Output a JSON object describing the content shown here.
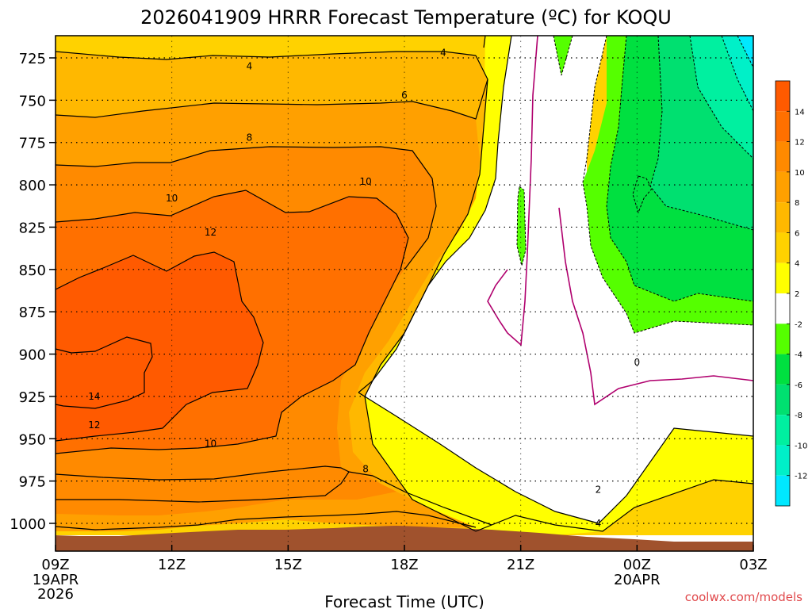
{
  "chart_data": {
    "type": "contour",
    "title": "2026041909 HRRR Forecast Temperature (ºC) for KOQU",
    "xlabel": "Forecast Time (UTC)",
    "credit": "coolwx.com/models",
    "y_ticks": [
      725,
      750,
      775,
      800,
      825,
      850,
      875,
      900,
      925,
      950,
      975,
      1000
    ],
    "x_ticks": [
      {
        "hour": 0,
        "label": "09Z",
        "sub1": "19APR",
        "sub2": "2026"
      },
      {
        "hour": 3,
        "label": "12Z",
        "sub1": "",
        "sub2": ""
      },
      {
        "hour": 6,
        "label": "15Z",
        "sub1": "",
        "sub2": ""
      },
      {
        "hour": 9,
        "label": "18Z",
        "sub1": "",
        "sub2": ""
      },
      {
        "hour": 12,
        "label": "21Z",
        "sub1": "",
        "sub2": ""
      },
      {
        "hour": 15,
        "label": "00Z",
        "sub1": "20APR",
        "sub2": ""
      },
      {
        "hour": 18,
        "label": "03Z",
        "sub1": "",
        "sub2": ""
      }
    ],
    "colorbar": {
      "labels": [
        14,
        12,
        10,
        8,
        6,
        4,
        2,
        -2,
        -4,
        -6,
        -8,
        -10,
        -12
      ],
      "bins": [
        {
          "color": "#ff5a00"
        },
        {
          "color": "#ff7000"
        },
        {
          "color": "#ff8a00"
        },
        {
          "color": "#ffa000"
        },
        {
          "color": "#ffb800"
        },
        {
          "color": "#ffd200"
        },
        {
          "color": "#ffff00"
        },
        {
          "color": "#ffffff"
        },
        {
          "color": "#55ff00"
        },
        {
          "color": "#00e040"
        },
        {
          "color": "#00e070"
        },
        {
          "color": "#00f0a0"
        },
        {
          "color": "#00f0c8"
        },
        {
          "color": "#00e8ff"
        }
      ]
    },
    "contour_labels": [
      {
        "text": "4",
        "hour": 5.0,
        "p": 730
      },
      {
        "text": "4",
        "hour": 10.0,
        "p": 722
      },
      {
        "text": "6",
        "hour": 9.0,
        "p": 747
      },
      {
        "text": "8",
        "hour": 5.0,
        "p": 772
      },
      {
        "text": "10",
        "hour": 3.0,
        "p": 808
      },
      {
        "text": "10",
        "hour": 8.0,
        "p": 798
      },
      {
        "text": "12",
        "hour": 4.0,
        "p": 828
      },
      {
        "text": "14",
        "hour": 1.0,
        "p": 925
      },
      {
        "text": "12",
        "hour": 1.0,
        "p": 942
      },
      {
        "text": "10",
        "hour": 4.0,
        "p": 953
      },
      {
        "text": "8",
        "hour": 8.0,
        "p": 968
      },
      {
        "text": "2",
        "hour": 14.0,
        "p": 980
      },
      {
        "text": "4",
        "hour": 14.0,
        "p": 1000
      },
      {
        "text": "0",
        "hour": 15.0,
        "p": 905
      }
    ]
  }
}
